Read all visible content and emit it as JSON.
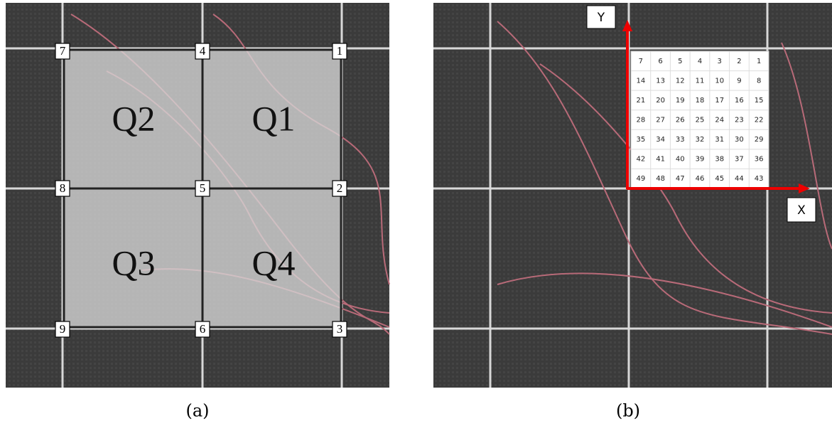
{
  "panel_a": {
    "corner_labels": [
      "1",
      "2",
      "3",
      "4",
      "5",
      "6",
      "7",
      "8",
      "9"
    ],
    "quadrants": [
      "Q1",
      "Q2",
      "Q3",
      "Q4"
    ],
    "caption": "(a)"
  },
  "panel_b": {
    "axis_y": "Y",
    "axis_x": "X",
    "grid": [
      [
        7,
        6,
        5,
        4,
        3,
        2,
        1
      ],
      [
        14,
        13,
        12,
        11,
        10,
        9,
        8
      ],
      [
        21,
        20,
        19,
        18,
        17,
        16,
        15
      ],
      [
        28,
        27,
        26,
        25,
        24,
        23,
        22
      ],
      [
        35,
        34,
        33,
        32,
        31,
        30,
        29
      ],
      [
        42,
        41,
        40,
        39,
        38,
        37,
        36
      ],
      [
        49,
        48,
        47,
        46,
        45,
        44,
        43
      ]
    ],
    "caption": "(b)"
  }
}
